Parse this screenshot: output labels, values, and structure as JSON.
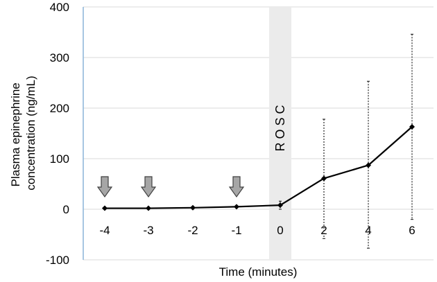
{
  "chart_data": {
    "type": "line",
    "xlabel": "Time (minutes)",
    "ylabel": [
      "Plasma epinephrine",
      "concentration (ng/mL)"
    ],
    "ylim": [
      -100,
      400
    ],
    "y_ticks": [
      "-100",
      "0",
      "100",
      "200",
      "300",
      "400"
    ],
    "categories": [
      "-4",
      "-3",
      "-2",
      "-1",
      "0",
      "2",
      "4",
      "6"
    ],
    "values": [
      2,
      2,
      3,
      5,
      8,
      61,
      87,
      163
    ],
    "error_bars": [
      {
        "category": "0",
        "low": 0,
        "high": 16
      },
      {
        "category": "2",
        "low": -58,
        "high": 178
      },
      {
        "category": "4",
        "low": -77,
        "high": 253
      },
      {
        "category": "6",
        "low": -20,
        "high": 346
      }
    ],
    "arrow_markers": [
      "-4",
      "-3",
      "-1"
    ],
    "band": {
      "category": "0",
      "label": "R O S C"
    },
    "grid": true,
    "colors": {
      "line": "#000000",
      "grid": "#d9d9d9",
      "axis": "#8ab4d8",
      "band": "#ebebeb",
      "arrow_fill": "#a6a6a6",
      "arrow_stroke": "#404040"
    }
  }
}
